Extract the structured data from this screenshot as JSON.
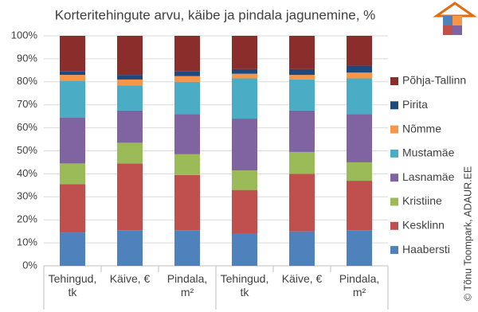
{
  "chart_data": {
    "type": "stacked_bar_100",
    "title": "Korteritehingute arvu, käibe ja pindala jagunemine, %",
    "credit": "© Tõnu Toompark, ADAUR.EE",
    "categories": [
      "Tehingud, tk",
      "Käive, €",
      "Pindala, m²",
      "Tehingud, tk",
      "Käive, €",
      "Pindala, m²"
    ],
    "series": [
      {
        "name": "Haabersti",
        "color": "#4f81bd",
        "values": [
          14.5,
          15.5,
          15.5,
          14,
          15,
          15.5
        ]
      },
      {
        "name": "Kesklinn",
        "color": "#c0504d",
        "values": [
          21,
          29,
          24,
          19,
          25,
          21.5
        ]
      },
      {
        "name": "Kristiine",
        "color": "#9bbb59",
        "values": [
          9,
          9,
          9,
          8.5,
          9.5,
          8
        ]
      },
      {
        "name": "Lasnamäe",
        "color": "#8064a2",
        "values": [
          20,
          14,
          17.5,
          22.5,
          18,
          21
        ]
      },
      {
        "name": "Mustamäe",
        "color": "#4bacc6",
        "values": [
          16,
          11,
          14,
          17.5,
          13.5,
          15.5
        ]
      },
      {
        "name": "Nõmme",
        "color": "#f79646",
        "values": [
          2.5,
          2.5,
          2.5,
          2,
          2,
          2.5
        ]
      },
      {
        "name": "Pirita",
        "color": "#1f497d",
        "values": [
          1.5,
          2,
          2,
          2,
          2.5,
          3
        ]
      },
      {
        "name": "Põhja-Tallinn",
        "color": "#8b2d2b",
        "values": [
          15.5,
          17,
          15.5,
          14.5,
          14.5,
          13
        ]
      }
    ],
    "ylim": [
      0,
      100
    ],
    "yticks": [
      {
        "value": 0,
        "label": "0%"
      },
      {
        "value": 10,
        "label": "10%"
      },
      {
        "value": 20,
        "label": "20%"
      },
      {
        "value": 30,
        "label": "30%"
      },
      {
        "value": 40,
        "label": "40%"
      },
      {
        "value": 50,
        "label": "50%"
      },
      {
        "value": 60,
        "label": "60%"
      },
      {
        "value": 70,
        "label": "70%"
      },
      {
        "value": 80,
        "label": "80%"
      },
      {
        "value": 90,
        "label": "90%"
      },
      {
        "value": 100,
        "label": "100%"
      }
    ],
    "grid": true,
    "legend": "right"
  }
}
